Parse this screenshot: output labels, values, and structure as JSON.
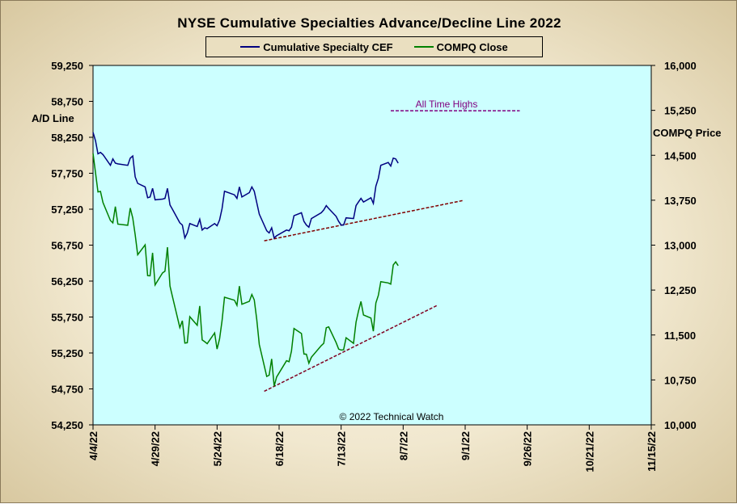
{
  "chart_data": {
    "type": "line",
    "title": "NYSE Cumulative  Specialties  Advance/Decline  Line  2022",
    "left_axis_label": "A/D Line",
    "right_axis_label": "COMPQ Price",
    "credit": "© 2022 Technical Watch",
    "annotation": "All Time Highs",
    "x_ticks": [
      "4/4/22",
      "4/29/22",
      "5/24/22",
      "6/18/22",
      "7/13/22",
      "8/7/22",
      "9/1/22",
      "9/26/22",
      "10/21/22",
      "11/15/22"
    ],
    "x_range": [
      "2022-04-04",
      "2022-11-15"
    ],
    "y_left_ticks": [
      "54,250",
      "54,750",
      "55,250",
      "55,750",
      "56,250",
      "56,750",
      "57,250",
      "57,750",
      "58,250",
      "58,750",
      "59,250"
    ],
    "y_left_range": [
      54250,
      59250
    ],
    "y_right_ticks": [
      "10,000",
      "10,750",
      "11,500",
      "12,250",
      "13,000",
      "13,750",
      "14,500",
      "15,250",
      "16,000"
    ],
    "y_right_range": [
      10000,
      16000
    ],
    "background": "#ccffff",
    "grid": false,
    "series": [
      {
        "name": "Cumulative Specialty CEF",
        "axis": "left",
        "color": "#000080",
        "points": [
          [
            "2022-04-04",
            58320
          ],
          [
            "2022-04-05",
            58200
          ],
          [
            "2022-04-06",
            58020
          ],
          [
            "2022-04-07",
            58040
          ],
          [
            "2022-04-08",
            58010
          ],
          [
            "2022-04-11",
            57860
          ],
          [
            "2022-04-12",
            57950
          ],
          [
            "2022-04-13",
            57890
          ],
          [
            "2022-04-14",
            57880
          ],
          [
            "2022-04-18",
            57860
          ],
          [
            "2022-04-19",
            57960
          ],
          [
            "2022-04-20",
            57990
          ],
          [
            "2022-04-21",
            57700
          ],
          [
            "2022-04-22",
            57610
          ],
          [
            "2022-04-25",
            57560
          ],
          [
            "2022-04-26",
            57410
          ],
          [
            "2022-04-27",
            57420
          ],
          [
            "2022-04-28",
            57540
          ],
          [
            "2022-04-29",
            57380
          ],
          [
            "2022-05-02",
            57390
          ],
          [
            "2022-05-03",
            57400
          ],
          [
            "2022-05-04",
            57540
          ],
          [
            "2022-05-05",
            57310
          ],
          [
            "2022-05-06",
            57250
          ],
          [
            "2022-05-09",
            57060
          ],
          [
            "2022-05-10",
            57030
          ],
          [
            "2022-05-11",
            56850
          ],
          [
            "2022-05-12",
            56920
          ],
          [
            "2022-05-13",
            57050
          ],
          [
            "2022-05-16",
            57010
          ],
          [
            "2022-05-17",
            57110
          ],
          [
            "2022-05-18",
            56960
          ],
          [
            "2022-05-19",
            56990
          ],
          [
            "2022-05-20",
            56980
          ],
          [
            "2022-05-23",
            57050
          ],
          [
            "2022-05-24",
            57020
          ],
          [
            "2022-05-25",
            57100
          ],
          [
            "2022-05-26",
            57260
          ],
          [
            "2022-05-27",
            57500
          ],
          [
            "2022-05-31",
            57450
          ],
          [
            "2022-06-01",
            57400
          ],
          [
            "2022-06-02",
            57560
          ],
          [
            "2022-06-03",
            57420
          ],
          [
            "2022-06-06",
            57480
          ],
          [
            "2022-06-07",
            57560
          ],
          [
            "2022-06-08",
            57500
          ],
          [
            "2022-06-09",
            57340
          ],
          [
            "2022-06-10",
            57180
          ],
          [
            "2022-06-13",
            56950
          ],
          [
            "2022-06-14",
            56920
          ],
          [
            "2022-06-15",
            56990
          ],
          [
            "2022-06-16",
            56850
          ],
          [
            "2022-06-17",
            56880
          ],
          [
            "2022-06-21",
            56960
          ],
          [
            "2022-06-22",
            56950
          ],
          [
            "2022-06-23",
            57000
          ],
          [
            "2022-06-24",
            57160
          ],
          [
            "2022-06-27",
            57200
          ],
          [
            "2022-06-28",
            57080
          ],
          [
            "2022-06-29",
            57030
          ],
          [
            "2022-06-30",
            57000
          ],
          [
            "2022-07-01",
            57120
          ],
          [
            "2022-07-05",
            57200
          ],
          [
            "2022-07-06",
            57240
          ],
          [
            "2022-07-07",
            57300
          ],
          [
            "2022-07-08",
            57260
          ],
          [
            "2022-07-11",
            57150
          ],
          [
            "2022-07-12",
            57080
          ],
          [
            "2022-07-13",
            57030
          ],
          [
            "2022-07-14",
            57030
          ],
          [
            "2022-07-15",
            57130
          ],
          [
            "2022-07-18",
            57120
          ],
          [
            "2022-07-19",
            57300
          ],
          [
            "2022-07-20",
            57350
          ],
          [
            "2022-07-21",
            57400
          ],
          [
            "2022-07-22",
            57350
          ],
          [
            "2022-07-25",
            57410
          ],
          [
            "2022-07-26",
            57330
          ],
          [
            "2022-07-27",
            57570
          ],
          [
            "2022-07-28",
            57680
          ],
          [
            "2022-07-29",
            57860
          ],
          [
            "2022-08-01",
            57900
          ],
          [
            "2022-08-02",
            57850
          ],
          [
            "2022-08-03",
            57960
          ],
          [
            "2022-08-04",
            57950
          ],
          [
            "2022-08-05",
            57890
          ]
        ]
      },
      {
        "name": "COMPQ Close",
        "axis": "right",
        "color": "#008000",
        "points": [
          [
            "2022-04-04",
            14532
          ],
          [
            "2022-04-05",
            14204
          ],
          [
            "2022-04-06",
            13888
          ],
          [
            "2022-04-07",
            13897
          ],
          [
            "2022-04-08",
            13711
          ],
          [
            "2022-04-11",
            13411
          ],
          [
            "2022-04-12",
            13372
          ],
          [
            "2022-04-13",
            13643
          ],
          [
            "2022-04-14",
            13351
          ],
          [
            "2022-04-18",
            13332
          ],
          [
            "2022-04-19",
            13619
          ],
          [
            "2022-04-20",
            13453
          ],
          [
            "2022-04-21",
            13174
          ],
          [
            "2022-04-22",
            12839
          ],
          [
            "2022-04-25",
            13004
          ],
          [
            "2022-04-26",
            12491
          ],
          [
            "2022-04-27",
            12488
          ],
          [
            "2022-04-28",
            12872
          ],
          [
            "2022-04-29",
            12335
          ],
          [
            "2022-05-02",
            12536
          ],
          [
            "2022-05-03",
            12564
          ],
          [
            "2022-05-04",
            12965
          ],
          [
            "2022-05-05",
            12318
          ],
          [
            "2022-05-06",
            12145
          ],
          [
            "2022-05-09",
            11623
          ],
          [
            "2022-05-10",
            11738
          ],
          [
            "2022-05-11",
            11365
          ],
          [
            "2022-05-12",
            11371
          ],
          [
            "2022-05-13",
            11805
          ],
          [
            "2022-05-16",
            11662
          ],
          [
            "2022-05-17",
            11985
          ],
          [
            "2022-05-18",
            11418
          ],
          [
            "2022-05-19",
            11389
          ],
          [
            "2022-05-20",
            11355
          ],
          [
            "2022-05-23",
            11535
          ],
          [
            "2022-05-24",
            11265
          ],
          [
            "2022-05-25",
            11435
          ],
          [
            "2022-05-26",
            11741
          ],
          [
            "2022-05-27",
            12131
          ],
          [
            "2022-05-31",
            12081
          ],
          [
            "2022-06-01",
            11995
          ],
          [
            "2022-06-02",
            12317
          ],
          [
            "2022-06-03",
            12013
          ],
          [
            "2022-06-06",
            12061
          ],
          [
            "2022-06-07",
            12176
          ],
          [
            "2022-06-08",
            12086
          ],
          [
            "2022-06-09",
            11755
          ],
          [
            "2022-06-10",
            11341
          ],
          [
            "2022-06-13",
            10809
          ],
          [
            "2022-06-14",
            10829
          ],
          [
            "2022-06-15",
            11100
          ],
          [
            "2022-06-16",
            10646
          ],
          [
            "2022-06-17",
            10798
          ],
          [
            "2022-06-21",
            11070
          ],
          [
            "2022-06-22",
            11054
          ],
          [
            "2022-06-23",
            11233
          ],
          [
            "2022-06-24",
            11608
          ],
          [
            "2022-06-27",
            11525
          ],
          [
            "2022-06-28",
            11182
          ],
          [
            "2022-06-29",
            11178
          ],
          [
            "2022-06-30",
            11029
          ],
          [
            "2022-07-01",
            11128
          ],
          [
            "2022-07-05",
            11323
          ],
          [
            "2022-07-06",
            11362
          ],
          [
            "2022-07-07",
            11621
          ],
          [
            "2022-07-08",
            11635
          ],
          [
            "2022-07-11",
            11373
          ],
          [
            "2022-07-12",
            11265
          ],
          [
            "2022-07-13",
            11248
          ],
          [
            "2022-07-14",
            11252
          ],
          [
            "2022-07-15",
            11453
          ],
          [
            "2022-07-18",
            11360
          ],
          [
            "2022-07-19",
            11714
          ],
          [
            "2022-07-20",
            11898
          ],
          [
            "2022-07-21",
            12060
          ],
          [
            "2022-07-22",
            11834
          ],
          [
            "2022-07-25",
            11782
          ],
          [
            "2022-07-26",
            11563
          ],
          [
            "2022-07-27",
            12033
          ],
          [
            "2022-07-28",
            12163
          ],
          [
            "2022-07-29",
            12391
          ],
          [
            "2022-08-01",
            12369
          ],
          [
            "2022-08-02",
            12349
          ],
          [
            "2022-08-03",
            12668
          ],
          [
            "2022-08-04",
            12721
          ],
          [
            "2022-08-05",
            12658
          ]
        ]
      }
    ],
    "trendlines": [
      {
        "axis": "left",
        "from": [
          "2022-06-12",
          56810
        ],
        "to": [
          "2022-08-31",
          57370
        ],
        "color": "#800000",
        "dashed": true
      },
      {
        "axis": "right",
        "from": [
          "2022-06-12",
          10560
        ],
        "to": [
          "2022-08-21",
          12000
        ],
        "color": "#800020",
        "dashed": true
      },
      {
        "axis": "left",
        "from": [
          "2022-08-02",
          58620
        ],
        "to": [
          "2022-09-23",
          58620
        ],
        "color": "#800080",
        "dashed": true
      }
    ]
  },
  "legend": {
    "items": [
      {
        "label": "Cumulative Specialty CEF",
        "color": "#000080"
      },
      {
        "label": "COMPQ Close",
        "color": "#008000"
      }
    ]
  }
}
